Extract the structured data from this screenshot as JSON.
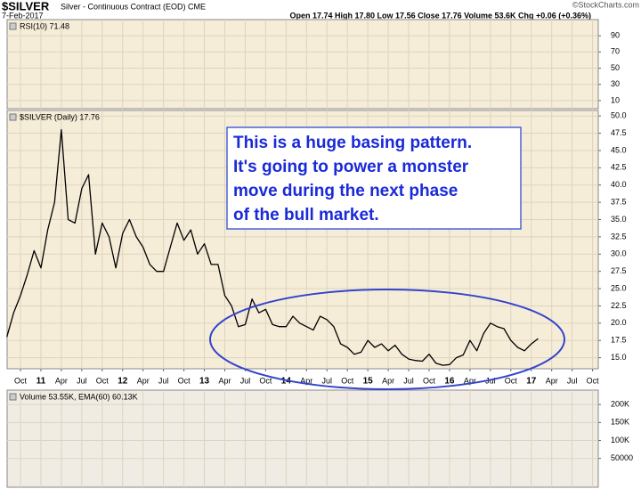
{
  "chart_data": [
    {
      "type": "line",
      "title": "$SILVER",
      "subtitle": "Silver - Continuous Contract (EOD) CME",
      "date": "7-Feb-2017",
      "quote": "Open 17.74 High 17.80 Low 17.56 Close 17.76 Volume 53.6K Chg +0.06 (+0.36%)",
      "source": "©StockCharts.com",
      "panel_label": "$SILVER (Daily) 17.76",
      "annotation": [
        "This is a huge basing pattern.",
        "It's going to power a monster",
        "move during the next phase",
        "of the bull market."
      ],
      "x": [
        "2010-08",
        "2010-09",
        "2010-10",
        "2010-11",
        "2010-12",
        "2011-01",
        "2011-02",
        "2011-03",
        "2011-04",
        "2011-05",
        "2011-06",
        "2011-07",
        "2011-08",
        "2011-09",
        "2011-10",
        "2011-11",
        "2011-12",
        "2012-01",
        "2012-02",
        "2012-03",
        "2012-04",
        "2012-05",
        "2012-06",
        "2012-07",
        "2012-08",
        "2012-09",
        "2012-10",
        "2012-11",
        "2012-12",
        "2013-01",
        "2013-02",
        "2013-03",
        "2013-04",
        "2013-05",
        "2013-06",
        "2013-07",
        "2013-08",
        "2013-09",
        "2013-10",
        "2013-11",
        "2013-12",
        "2014-01",
        "2014-02",
        "2014-03",
        "2014-04",
        "2014-05",
        "2014-06",
        "2014-07",
        "2014-08",
        "2014-09",
        "2014-10",
        "2014-11",
        "2014-12",
        "2015-01",
        "2015-02",
        "2015-03",
        "2015-04",
        "2015-05",
        "2015-06",
        "2015-07",
        "2015-08",
        "2015-09",
        "2015-10",
        "2015-11",
        "2015-12",
        "2016-01",
        "2016-02",
        "2016-03",
        "2016-04",
        "2016-05",
        "2016-06",
        "2016-07",
        "2016-08",
        "2016-09",
        "2016-10",
        "2016-11",
        "2016-12",
        "2017-01",
        "2017-02"
      ],
      "series": [
        {
          "color": "#000000",
          "values": [
            18.0,
            21.5,
            24.0,
            27.0,
            30.5,
            28.0,
            33.5,
            37.5,
            48.0,
            35.0,
            34.5,
            39.5,
            41.5,
            30.0,
            34.5,
            32.5,
            28.0,
            33.0,
            35.0,
            32.5,
            31.0,
            28.5,
            27.5,
            27.5,
            31.0,
            34.5,
            32.0,
            33.5,
            30.0,
            31.5,
            28.5,
            28.5,
            24.0,
            22.5,
            19.5,
            19.8,
            23.5,
            21.5,
            22.0,
            19.8,
            19.5,
            19.5,
            21.0,
            20.0,
            19.5,
            19.0,
            21.0,
            20.5,
            19.5,
            17.0,
            16.5,
            15.5,
            15.8,
            17.5,
            16.5,
            17.0,
            16.0,
            16.8,
            15.5,
            14.8,
            14.6,
            14.5,
            15.5,
            14.2,
            13.9,
            14.0,
            15.0,
            15.4,
            17.5,
            16.0,
            18.5,
            20.0,
            19.5,
            19.2,
            17.5,
            16.5,
            16.0,
            17.0,
            17.76
          ]
        }
      ],
      "xticks": [
        {
          "value": "2010-10",
          "label": "Oct"
        },
        {
          "value": "2011-01",
          "label": "11"
        },
        {
          "value": "2011-04",
          "label": "Apr"
        },
        {
          "value": "2011-07",
          "label": "Jul"
        },
        {
          "value": "2011-10",
          "label": "Oct"
        },
        {
          "value": "2012-01",
          "label": "12"
        },
        {
          "value": "2012-04",
          "label": "Apr"
        },
        {
          "value": "2012-07",
          "label": "Jul"
        },
        {
          "value": "2012-10",
          "label": "Oct"
        },
        {
          "value": "2013-01",
          "label": "13"
        },
        {
          "value": "2013-04",
          "label": "Apr"
        },
        {
          "value": "2013-07",
          "label": "Jul"
        },
        {
          "value": "2013-10",
          "label": "Oct"
        },
        {
          "value": "2014-01",
          "label": "14"
        },
        {
          "value": "2014-04",
          "label": "Apr"
        },
        {
          "value": "2014-07",
          "label": "Jul"
        },
        {
          "value": "2014-10",
          "label": "Oct"
        },
        {
          "value": "2015-01",
          "label": "15"
        },
        {
          "value": "2015-04",
          "label": "Apr"
        },
        {
          "value": "2015-07",
          "label": "Jul"
        },
        {
          "value": "2015-10",
          "label": "Oct"
        },
        {
          "value": "2016-01",
          "label": "16"
        },
        {
          "value": "2016-04",
          "label": "Apr"
        },
        {
          "value": "2016-07",
          "label": "Jul"
        },
        {
          "value": "2016-10",
          "label": "Oct"
        },
        {
          "value": "2017-01",
          "label": "17"
        },
        {
          "value": "2017-04",
          "label": "Apr"
        },
        {
          "value": "2017-07",
          "label": "Jul"
        },
        {
          "value": "2017-10",
          "label": "Oct"
        }
      ],
      "ylim": [
        13.4,
        50.8
      ],
      "yticks": [
        {
          "value": 50,
          "label": "50.0"
        },
        47.5,
        {
          "value": 45,
          "label": "45.0"
        },
        42.5,
        {
          "value": 40,
          "label": "40.0"
        },
        37.5,
        {
          "value": 35,
          "label": "35.0"
        },
        32.5,
        {
          "value": 30,
          "label": "30.0"
        },
        27.5,
        {
          "value": 25,
          "label": "25.0"
        },
        22.5,
        {
          "value": 20,
          "label": "20.0"
        },
        17.5,
        {
          "value": 15,
          "label": "15.0"
        }
      ],
      "grid": true
    },
    {
      "type": "line",
      "panel_label": "RSI(10) 71.48",
      "ylim": [
        0,
        110
      ],
      "yticks": [
        90,
        70,
        50,
        30,
        10
      ],
      "grid": true
    },
    {
      "type": "bar",
      "panel_label": "Volume 53.55K, EMA(60) 60.13K",
      "ylim": [
        -30000,
        240000
      ],
      "yticks": [
        {
          "value": 200000,
          "label": "200K"
        },
        {
          "value": 150000,
          "label": "150K"
        },
        {
          "value": 100000,
          "label": "100K"
        },
        50000
      ],
      "grid": true
    }
  ]
}
